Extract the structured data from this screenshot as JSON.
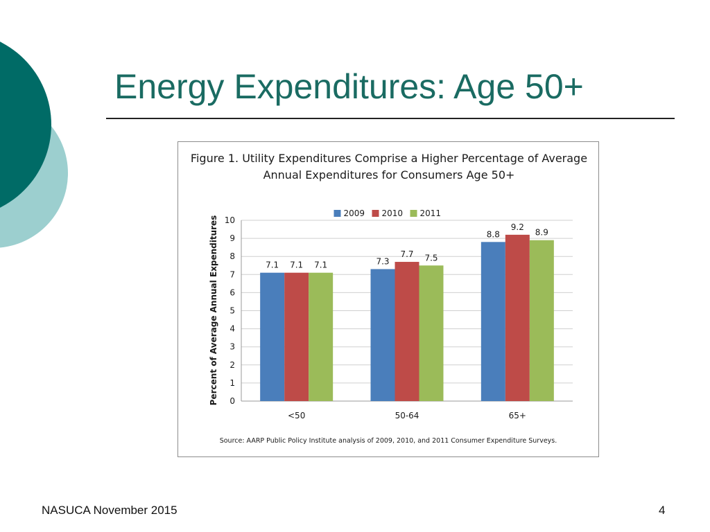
{
  "slide": {
    "title": "Energy Expenditures:  Age 50+",
    "footer_left": "NASUCA November 2015",
    "page_number": "4"
  },
  "colors": {
    "title": "#1a6b62",
    "deco_dark": "#006b66",
    "deco_light": "#9ccfcf",
    "series": [
      "#4a7ebb",
      "#be4b48",
      "#9bbb59"
    ]
  },
  "chart_data": {
    "type": "bar",
    "title": "Figure 1. Utility Expenditures Comprise a Higher Percentage of Average",
    "title_line2": "Annual Expenditures for Consumers Age 50+",
    "categories": [
      "<50",
      "50-64",
      "65+"
    ],
    "series": [
      {
        "name": "2009",
        "values": [
          7.1,
          7.3,
          8.8
        ]
      },
      {
        "name": "2010",
        "values": [
          7.1,
          7.7,
          9.2
        ]
      },
      {
        "name": "2011",
        "values": [
          7.1,
          7.5,
          8.9
        ]
      }
    ],
    "ylabel": "Percent of Average Annual Expenditures",
    "xlabel": "",
    "ylim": [
      0,
      10
    ],
    "yticks": [
      "0",
      "1",
      "2",
      "3",
      "4",
      "5",
      "6",
      "7",
      "8",
      "9",
      "10"
    ],
    "grid": true,
    "legend_position": "top",
    "source": "Source:  AARP Public Policy Institute analysis of 2009, 2010, and 2011 Consumer Expenditure Surveys."
  }
}
